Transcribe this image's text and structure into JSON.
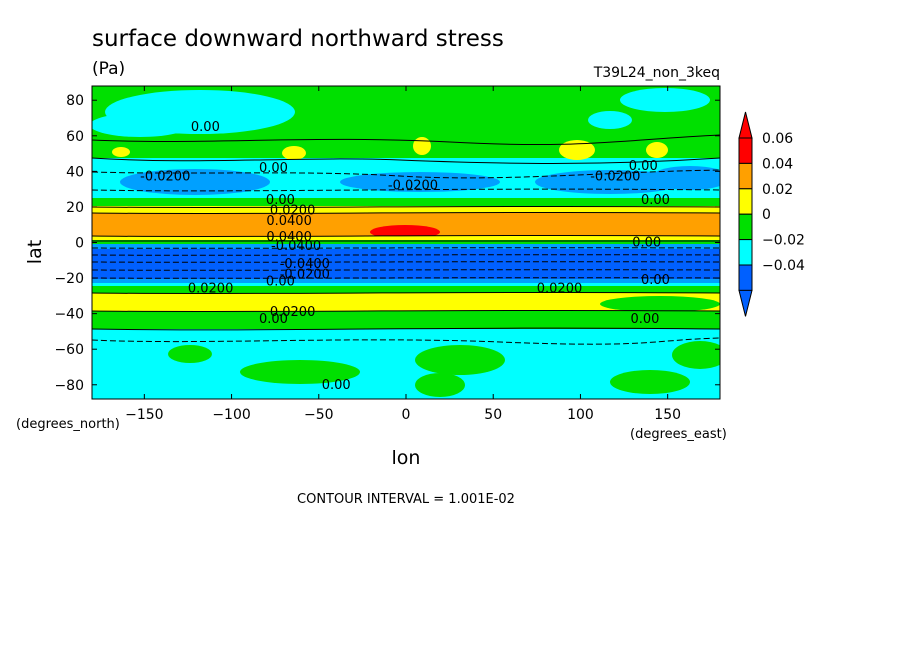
{
  "chart_data": {
    "type": "heatmap",
    "title": "surface downward northward stress",
    "units": "(Pa)",
    "run_label": "T39L24_non_3keq",
    "xlabel": "lon",
    "ylabel": "lat",
    "xunits": "(degrees_east)",
    "yunits": "(degrees_north)",
    "xlim": [
      -180,
      180
    ],
    "ylim": [
      -88,
      88
    ],
    "x_ticks": [
      -150,
      -100,
      -50,
      0,
      50,
      100,
      150
    ],
    "y_ticks": [
      -80,
      -60,
      -40,
      -20,
      0,
      20,
      40,
      60,
      80
    ],
    "contour_interval_text": "CONTOUR INTERVAL = 1.001E-02",
    "colorbar": {
      "colors": [
        "#0060ff",
        "#00ffff",
        "#00e000",
        "#ffff00",
        "#ffa000",
        "#ff0000"
      ],
      "labels": [
        "0.06",
        "0.04",
        "0.02",
        "0",
        "−0.02",
        "−0.04"
      ]
    },
    "contour_labels": [
      {
        "text": "0.00",
        "lon": -115,
        "lat": 65
      },
      {
        "text": "-0.0200",
        "lon": -138,
        "lat": 37
      },
      {
        "text": "0.00",
        "lon": -76,
        "lat": 42
      },
      {
        "text": "-0.0200",
        "lon": 4,
        "lat": 32
      },
      {
        "text": "-0.0200",
        "lon": 120,
        "lat": 37
      },
      {
        "text": "0.00",
        "lon": 136,
        "lat": 43
      },
      {
        "text": "0.00",
        "lon": 143,
        "lat": 24
      },
      {
        "text": "0.00",
        "lon": -72,
        "lat": 24
      },
      {
        "text": "0.0200",
        "lon": -65,
        "lat": 18
      },
      {
        "text": "0.0400",
        "lon": -67,
        "lat": 12
      },
      {
        "text": "0.0400",
        "lon": -67,
        "lat": 3
      },
      {
        "text": "-0.0400",
        "lon": -63,
        "lat": -2
      },
      {
        "text": "0.00",
        "lon": 138,
        "lat": 0
      },
      {
        "text": "-0.0400",
        "lon": -58,
        "lat": -12
      },
      {
        "text": "-0.0200",
        "lon": -58,
        "lat": -18
      },
      {
        "text": "0.00",
        "lon": -72,
        "lat": -22
      },
      {
        "text": "0.0200",
        "lon": -112,
        "lat": -26
      },
      {
        "text": "0.0200",
        "lon": 88,
        "lat": -26
      },
      {
        "text": "0.00",
        "lon": 143,
        "lat": -21
      },
      {
        "text": "0.0200",
        "lon": -65,
        "lat": -39
      },
      {
        "text": "0.00",
        "lon": -76,
        "lat": -43
      },
      {
        "text": "0.00",
        "lon": 137,
        "lat": -43
      },
      {
        "text": "0.00",
        "lon": -40,
        "lat": -80
      }
    ]
  }
}
